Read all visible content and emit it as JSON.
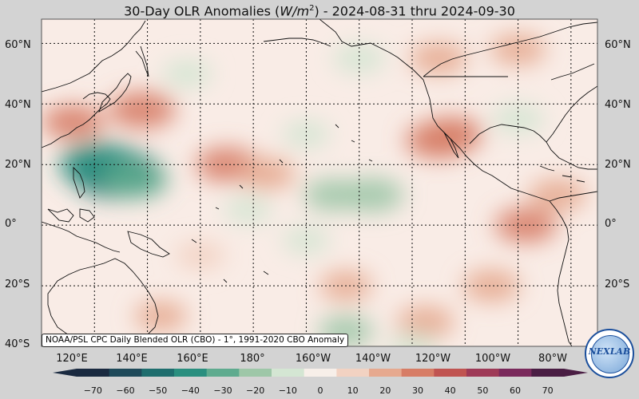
{
  "title": {
    "prefix": "30-Day OLR Anomalies (",
    "unit_base": "W/m",
    "unit_exp": "2",
    "suffix": ") - 2024-08-31 thru 2024-09-30"
  },
  "lat_labels": [
    "60°N",
    "40°N",
    "20°N",
    "0°",
    "20°S",
    "40°S"
  ],
  "lon_labels": [
    "120°E",
    "140°E",
    "160°E",
    "180°",
    "160°W",
    "140°W",
    "120°W",
    "100°W",
    "80°W"
  ],
  "credit": "NOAA/PSL CPC Daily Blended OLR (CBO) - 1°, 1991-2020 CBO Anomaly",
  "logo": {
    "text": "NEXLAB"
  },
  "colorbar": {
    "ticks": [
      "−70",
      "−60",
      "−50",
      "−40",
      "−30",
      "−20",
      "−10",
      "0",
      "10",
      "20",
      "30",
      "40",
      "50",
      "60",
      "70"
    ],
    "colors": [
      "#1a2a40",
      "#1f4a5a",
      "#1f6e6e",
      "#2a8f7f",
      "#5fab8f",
      "#9ec7a8",
      "#d4e6d3",
      "#f7efe9",
      "#f2d2c2",
      "#e6a98f",
      "#d77d66",
      "#c05451",
      "#9e3a57",
      "#7a2a5c",
      "#4a1e44"
    ]
  },
  "map": {
    "ocean_color": "#f9ece6",
    "anomaly_regions": [
      {
        "lon": 128,
        "lat": 17,
        "value": -55
      },
      {
        "lon": 122,
        "lat": 20,
        "value": -45
      },
      {
        "lon": 135,
        "lat": 15,
        "value": -30
      },
      {
        "lon": 112,
        "lat": 34,
        "value": 25
      },
      {
        "lon": 138,
        "lat": 38,
        "value": 30
      },
      {
        "lon": 170,
        "lat": 20,
        "value": 25
      },
      {
        "lon": 185,
        "lat": 17,
        "value": 20
      },
      {
        "lon": 210,
        "lat": 10,
        "value": -20
      },
      {
        "lon": 225,
        "lat": 10,
        "value": -25
      },
      {
        "lon": 250,
        "lat": 28,
        "value": 30
      },
      {
        "lon": 255,
        "lat": 30,
        "value": 25
      },
      {
        "lon": 280,
        "lat": 35,
        "value": -15
      },
      {
        "lon": 215,
        "lat": -20,
        "value": 15
      },
      {
        "lon": 245,
        "lat": -32,
        "value": 20
      },
      {
        "lon": 270,
        "lat": -20,
        "value": 20
      },
      {
        "lon": 283,
        "lat": 0,
        "value": 25
      },
      {
        "lon": 295,
        "lat": 10,
        "value": 20
      },
      {
        "lon": 155,
        "lat": 50,
        "value": -12
      },
      {
        "lon": 220,
        "lat": 55,
        "value": -15
      },
      {
        "lon": 250,
        "lat": 55,
        "value": 20
      },
      {
        "lon": 280,
        "lat": 58,
        "value": 18
      },
      {
        "lon": 200,
        "lat": -5,
        "value": -10
      },
      {
        "lon": 215,
        "lat": -35,
        "value": -18
      },
      {
        "lon": 240,
        "lat": -40,
        "value": -12
      },
      {
        "lon": 145,
        "lat": -30,
        "value": 15
      },
      {
        "lon": 160,
        "lat": -10,
        "value": 12
      },
      {
        "lon": 200,
        "lat": 30,
        "value": -10
      },
      {
        "lon": 178,
        "lat": 5,
        "value": -10
      }
    ]
  }
}
